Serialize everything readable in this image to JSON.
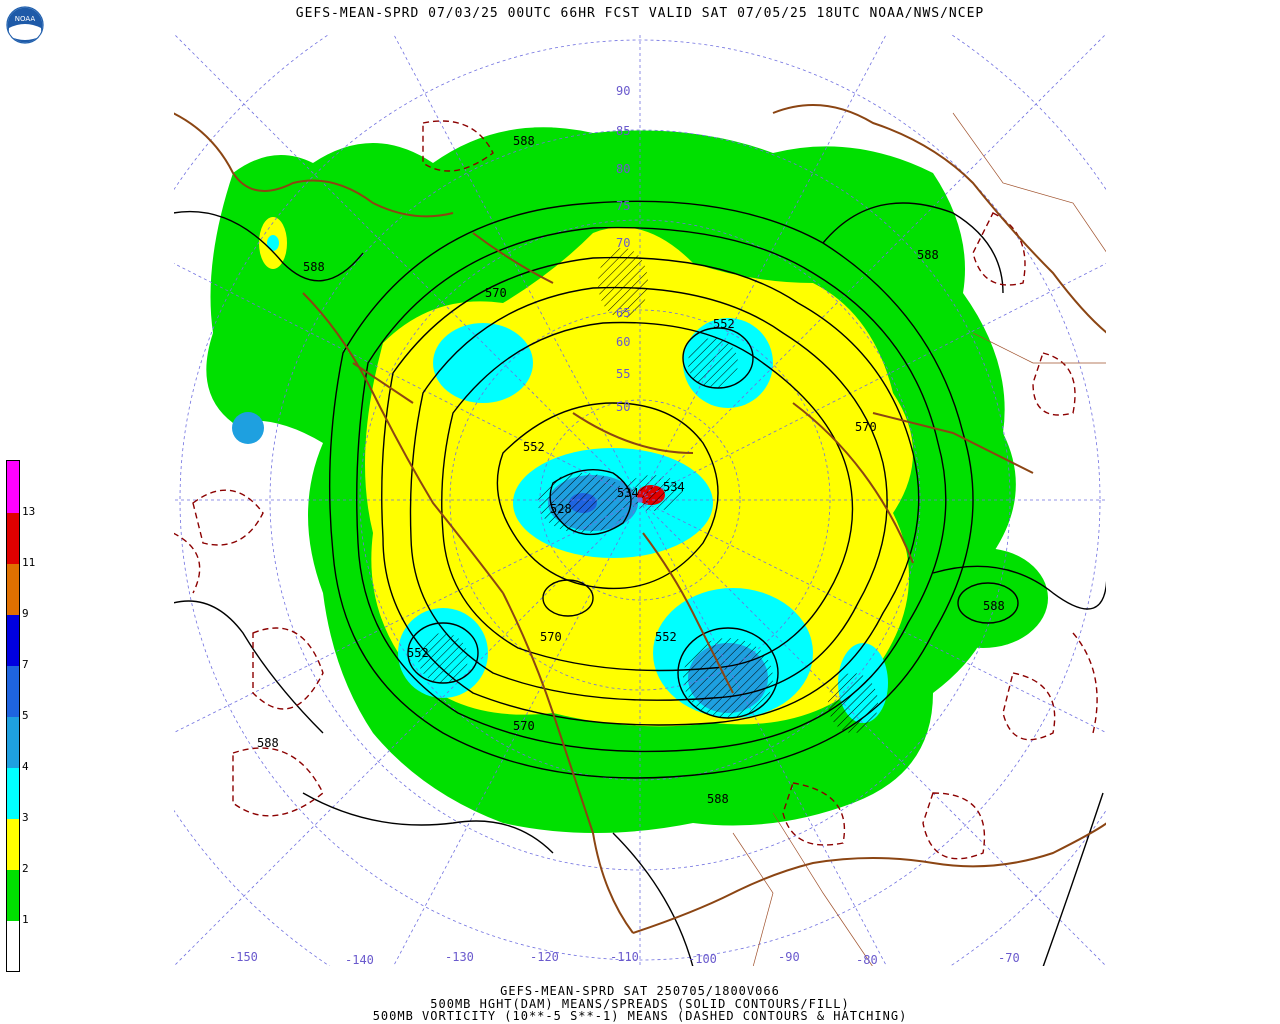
{
  "header": {
    "title": "GEFS-MEAN-SPRD 07/03/25 00UTC 66HR FCST VALID SAT 07/05/25 18UTC NOAA/NWS/NCEP",
    "logo_text": "NOAA"
  },
  "colorbar": {
    "labels": [
      "1",
      "2",
      "3",
      "4",
      "5",
      "7",
      "9",
      "11",
      "13"
    ],
    "colors": [
      "#ffffff",
      "#00e000",
      "#ffff00",
      "#00ffff",
      "#1ea0e0",
      "#1e64e0",
      "#0000e0",
      "#e07000",
      "#e00000",
      "#ff00ff"
    ]
  },
  "map": {
    "contour_labels": [
      {
        "text": "588",
        "id": "c1"
      },
      {
        "text": "588",
        "id": "c2"
      },
      {
        "text": "570",
        "id": "c3"
      },
      {
        "text": "552",
        "id": "c4"
      },
      {
        "text": "570",
        "id": "c5"
      },
      {
        "text": "552",
        "id": "c6"
      },
      {
        "text": "534",
        "id": "c7"
      },
      {
        "text": "534",
        "id": "c8"
      },
      {
        "text": "528",
        "id": "c9"
      },
      {
        "text": "570",
        "id": "c10"
      },
      {
        "text": "552",
        "id": "c11"
      },
      {
        "text": "552",
        "id": "c12"
      },
      {
        "text": "570",
        "id": "c13"
      },
      {
        "text": "588",
        "id": "c14"
      },
      {
        "text": "588",
        "id": "c15"
      },
      {
        "text": "588",
        "id": "c16"
      },
      {
        "text": "588",
        "id": "c17"
      }
    ],
    "lat_labels": [
      "90",
      "85",
      "80",
      "75",
      "70",
      "65",
      "60",
      "55",
      "50"
    ],
    "lon_labels": [
      "-150",
      "-140",
      "-130",
      "-120",
      "-110",
      "-100",
      "-90",
      "-80",
      "-70"
    ]
  },
  "footer": {
    "line1": "GEFS-MEAN-SPRD SAT 250705/1800V066",
    "line2": "500MB HGHT(DAM) MEANS/SPREADS (SOLID CONTOURS/FILL)",
    "line3": "500MB VORTICITY (10**-5 S**-1) MEANS (DASHED CONTOURS & HATCHING)"
  }
}
